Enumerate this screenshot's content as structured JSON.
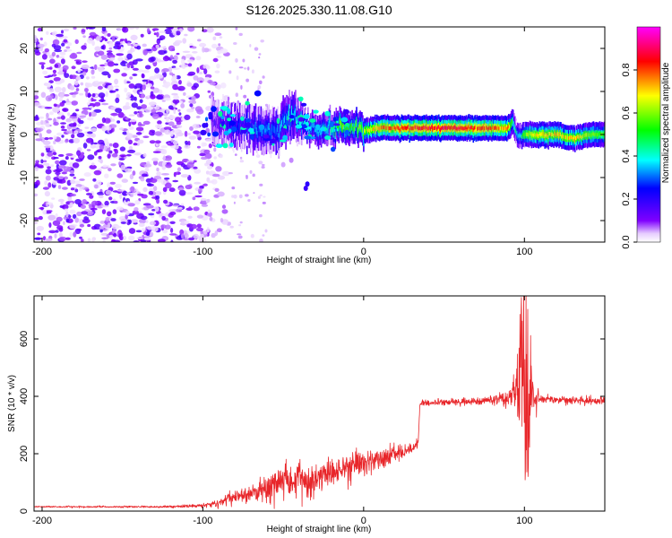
{
  "figure": {
    "title": "S126.2025.330.11.08.G10"
  },
  "chart_data": [
    {
      "type": "heatmap",
      "title": "S126.2025.330.11.08.G10",
      "xlabel": "Height of straight line (km)",
      "ylabel": "Frequency (Hz)",
      "xlim": [
        -205,
        150
      ],
      "ylim": [
        -25,
        25
      ],
      "x_ticks": [
        -200,
        -100,
        0,
        100
      ],
      "y_ticks": [
        -20,
        -10,
        0,
        10,
        20
      ],
      "grid": false,
      "colorbar": {
        "label": "Normalized spectral amplitude",
        "range": [
          0,
          1
        ],
        "ticks": [
          0.0,
          0.2,
          0.4,
          0.6,
          0.8
        ],
        "colors": [
          "#ffffff",
          "#7f00ff",
          "#0000ff",
          "#00ffff",
          "#00ff00",
          "#ffff00",
          "#ff0000",
          "#ff00ff"
        ]
      },
      "ridge": {
        "name": "",
        "x": [
          -95,
          -85,
          -75,
          -65,
          -55,
          -45,
          -40,
          -30,
          -20,
          -15,
          -10,
          0,
          10,
          20,
          40,
          60,
          80,
          90,
          92,
          95,
          97,
          100,
          110,
          120,
          130,
          140,
          150
        ],
        "frequency": [
          3,
          2.5,
          2,
          1,
          1,
          4,
          3,
          1,
          1.5,
          2.5,
          1.5,
          1,
          1.5,
          1.5,
          1.5,
          1.5,
          1.5,
          1.5,
          3,
          0,
          -0.5,
          0,
          0,
          0,
          -1,
          0,
          0
        ],
        "amplitude": [
          0.1,
          0.2,
          0.25,
          0.3,
          0.3,
          0.4,
          0.35,
          0.35,
          0.4,
          0.6,
          0.5,
          0.6,
          0.75,
          0.8,
          0.85,
          0.85,
          0.8,
          0.7,
          0.5,
          0.4,
          0.35,
          0.6,
          0.7,
          0.7,
          0.7,
          0.6,
          0.55
        ]
      },
      "noise_region": {
        "x_range": [
          -205,
          -95
        ],
        "frequency_range": [
          -25,
          25
        ],
        "amplitude_range": [
          0.0,
          0.15
        ]
      }
    },
    {
      "type": "line",
      "title": "",
      "xlabel": "Height of straight line (km)",
      "ylabel": "SNR (10 * v/v)",
      "xlim": [
        -205,
        150
      ],
      "ylim": [
        0,
        750
      ],
      "x_ticks": [
        -200,
        -100,
        0,
        100
      ],
      "y_ticks": [
        0,
        200,
        400,
        600
      ],
      "grid": false,
      "series": [
        {
          "name": "",
          "color": "#e8262a",
          "x": [
            -205,
            -180,
            -150,
            -120,
            -100,
            -90,
            -80,
            -70,
            -60,
            -50,
            -40,
            -30,
            -20,
            -10,
            0,
            10,
            20,
            30,
            34,
            35,
            40,
            50,
            60,
            70,
            80,
            85,
            90,
            95,
            98,
            100,
            102,
            105,
            110,
            120,
            130,
            140,
            150
          ],
          "y": [
            15,
            15,
            15,
            15,
            20,
            30,
            50,
            60,
            75,
            100,
            110,
            120,
            130,
            150,
            170,
            185,
            200,
            220,
            240,
            375,
            378,
            380,
            380,
            382,
            385,
            390,
            395,
            430,
            540,
            580,
            430,
            395,
            390,
            388,
            386,
            384,
            385
          ],
          "noise": [
            2,
            3,
            3,
            4,
            8,
            12,
            20,
            28,
            40,
            55,
            55,
            55,
            50,
            45,
            40,
            35,
            30,
            25,
            10,
            10,
            10,
            10,
            10,
            10,
            12,
            18,
            40,
            100,
            260,
            420,
            300,
            60,
            15,
            12,
            12,
            12,
            12
          ]
        }
      ]
    }
  ]
}
